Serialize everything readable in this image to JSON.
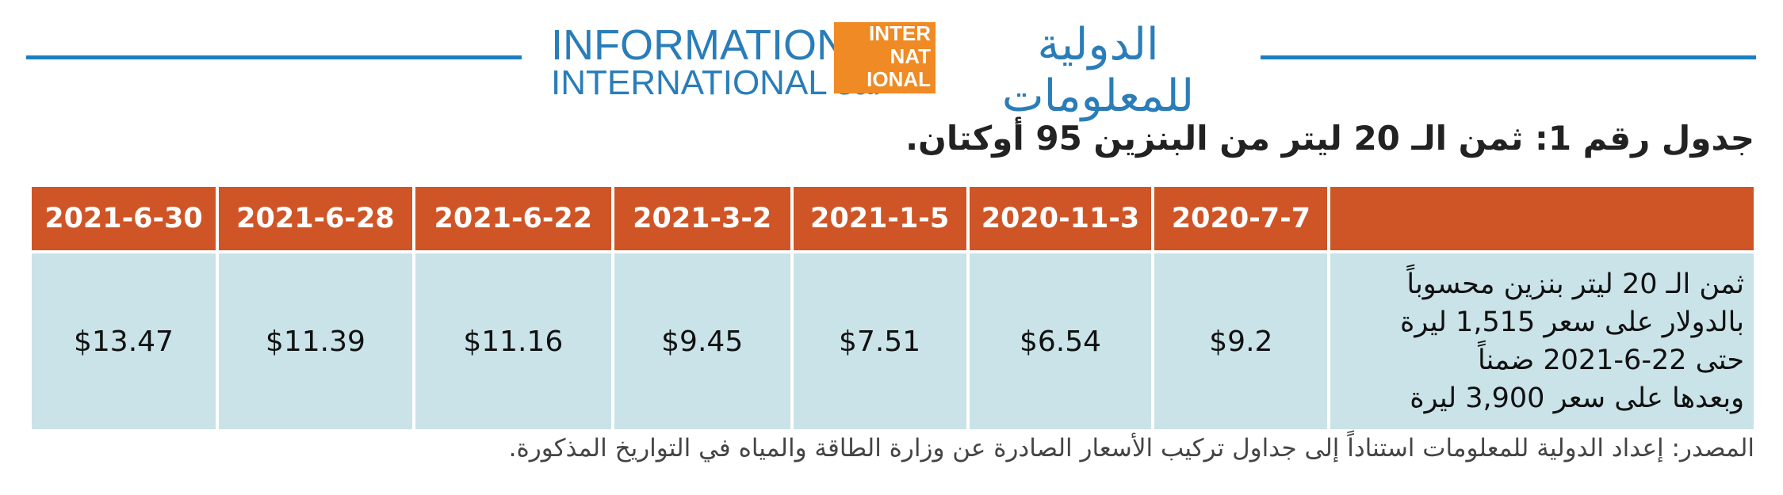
{
  "header": {
    "logo_en_line1": "INFORMATION",
    "logo_en_line2": "INTERNATIONAL sal",
    "logo_mark_line1": "INTER",
    "logo_mark_line2": "NAT",
    "logo_mark_line3": "IONAL",
    "logo_ar": "الدولية للمعلومات"
  },
  "title": "جدول رقم 1: ثمن الـ 20 ليتر من البنزين 95 أوكتان.",
  "table": {
    "headers": [
      "2020-7-7",
      "2020-11-3",
      "2021-1-5",
      "2021-3-2",
      "2021-6-22",
      "2021-6-28",
      "2021-6-30"
    ],
    "row": {
      "label_lines": [
        "ثمن الـ 20 ليتر بنزين محسوباً",
        "بالدولار على سعر 1,515 ليرة",
        "حتى 22-6-2021 ضمناً",
        "وبعدها على سعر 3,900 ليرة"
      ],
      "values": [
        "$9.2",
        "$6.54",
        "$7.51",
        "$9.45",
        "$11.16",
        "$11.39",
        "$13.47"
      ]
    }
  },
  "source": "المصدر: إعداد الدولية للمعلومات استناداً إلى جداول تركيب الأسعار الصادرة عن وزارة الطاقة والمياه في التواريخ المذكورة."
}
